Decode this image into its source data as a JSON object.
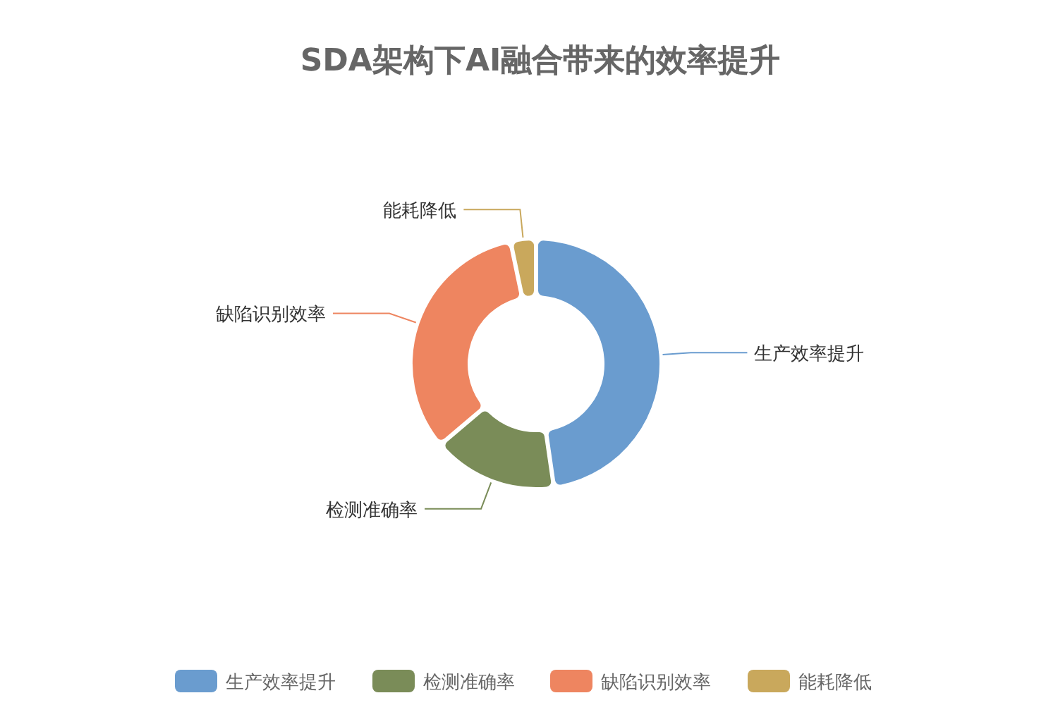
{
  "chart_data": {
    "type": "donut",
    "title": "SDA架构下AI融合带来的效率提升",
    "categories": [
      "生产效率提升",
      "检测准确率",
      "缺陷识别效率",
      "能耗降低"
    ],
    "values": [
      48,
      16,
      33,
      3
    ],
    "colors": [
      "#6a9ccf",
      "#7a8c58",
      "#ee8560",
      "#c9a85c"
    ],
    "legend": "bottom"
  }
}
